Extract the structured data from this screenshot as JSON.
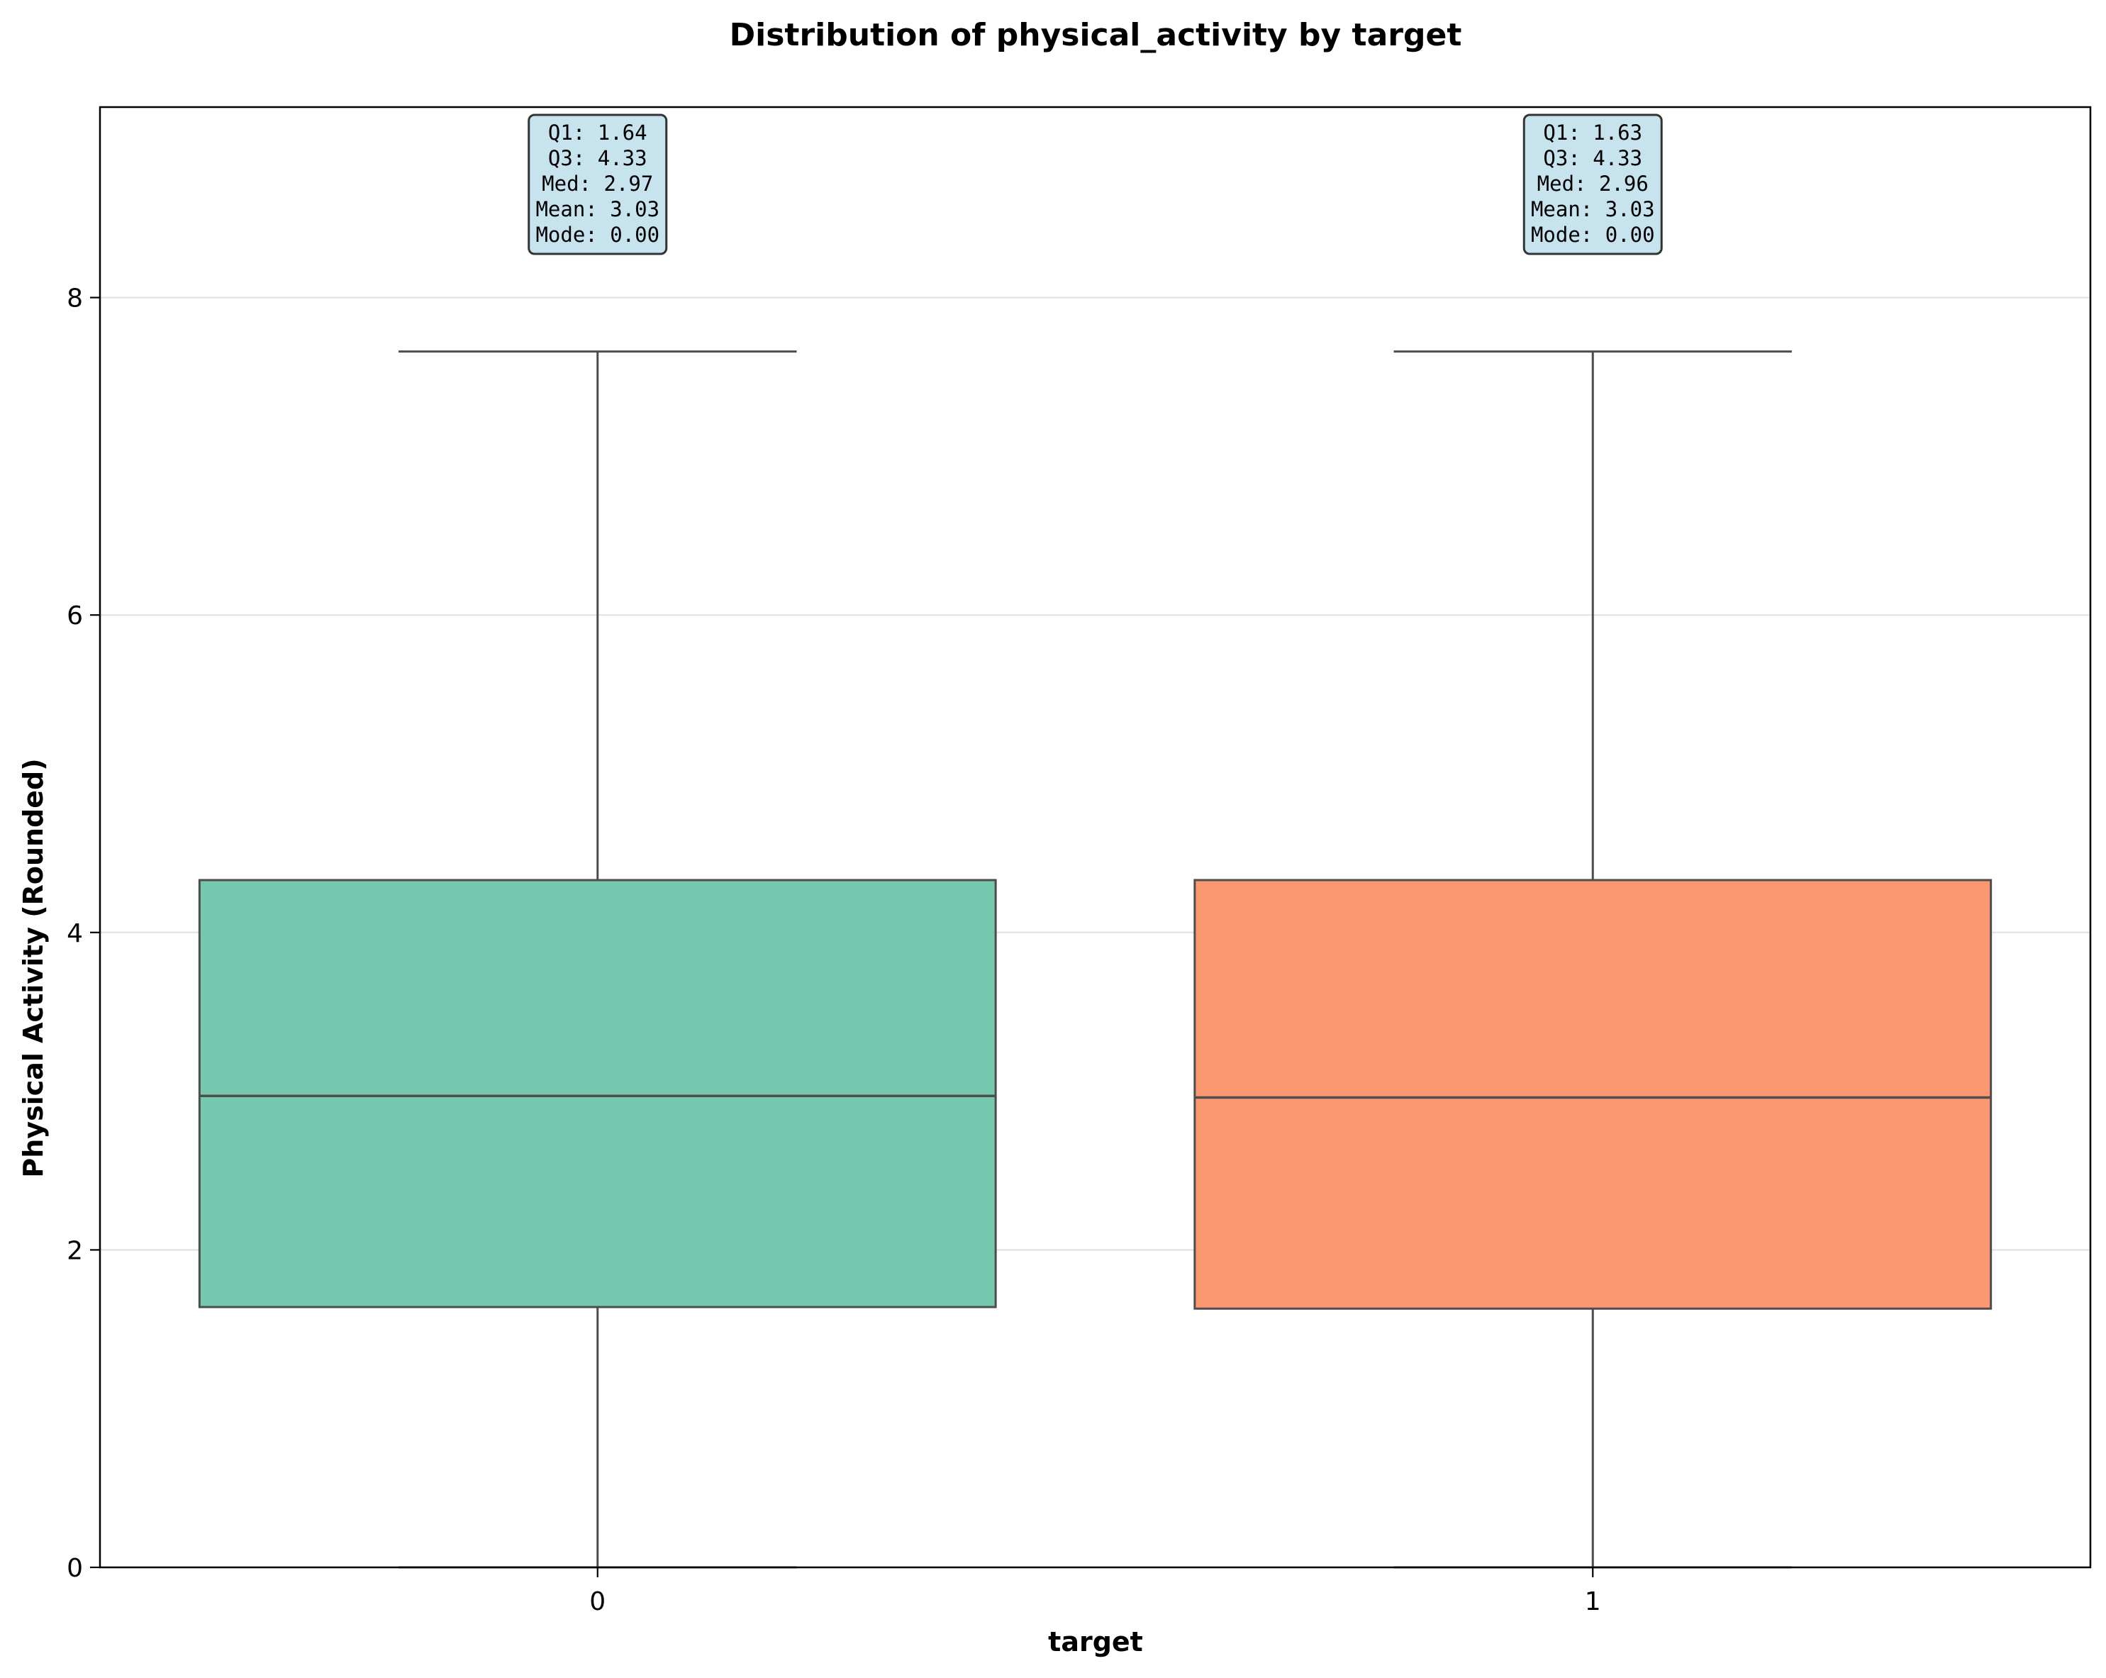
{
  "chart_data": {
    "type": "box",
    "title": "Distribution of physical_activity by target",
    "xlabel": "target",
    "ylabel": "Physical Activity (Rounded)",
    "ylim": [
      0,
      9.2
    ],
    "yticks": [
      0,
      2,
      4,
      6,
      8
    ],
    "grid": "y",
    "categories": [
      "0",
      "1"
    ],
    "series": [
      {
        "category": "0",
        "color": "#66c2a5",
        "whisker_low": 0.0,
        "q1": 1.64,
        "median": 2.97,
        "q3": 4.33,
        "whisker_high": 7.66,
        "stats_lines": [
          "Q1: 1.64",
          "Q3: 4.33",
          "Med: 2.97",
          "Mean: 3.03",
          "Mode: 0.00"
        ]
      },
      {
        "category": "1",
        "color": "#fc8d62",
        "whisker_low": 0.0,
        "q1": 1.63,
        "median": 2.96,
        "q3": 4.33,
        "whisker_high": 7.66,
        "stats_lines": [
          "Q1: 1.63",
          "Q3: 4.33",
          "Med: 2.96",
          "Mean: 3.03",
          "Mode: 0.00"
        ]
      }
    ],
    "stats_box_color": "#c6e3ee"
  }
}
